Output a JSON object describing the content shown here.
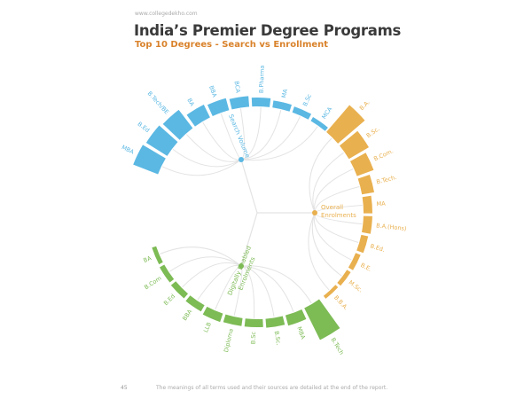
{
  "header": {
    "site": "www.collegedekho.com",
    "title": "India’s Premier Degree Programs",
    "subtitle": "Top 10 Degrees - Search vs Enrollment"
  },
  "footer": {
    "page_number": "45",
    "note": "The meanings of all terms used and their sources are detailed at the end of the report."
  },
  "chart_data": {
    "type": "radial bar dendrogram",
    "note_values": "relative bar lengths estimated visually; no axis printed",
    "groups": [
      {
        "name": "Search Volume",
        "color": "#5bb8e3",
        "categories": [
          "MBA",
          "B.Ed",
          "B.Tech/BE",
          "BA",
          "BBA",
          "BCA",
          "B.Pharma",
          "MA",
          "B.Sc",
          "MCA"
        ],
        "values": [
          30,
          28,
          26,
          16,
          14,
          12,
          10,
          8,
          7,
          5
        ]
      },
      {
        "name": "Overall Enrolments",
        "color": "#e9b04f",
        "categories": [
          "B.A.",
          "B.Sc.",
          "B.Com.",
          "B.Tech.",
          "MA",
          "B.A.(Hons)",
          "B.Ed.",
          "B.E.",
          "M.Sc.",
          "B.B.A."
        ],
        "values": [
          40,
          26,
          20,
          14,
          10,
          10,
          8,
          6,
          5,
          4
        ]
      },
      {
        "name": "Digitally Enabled Enrolments",
        "color": "#7dbb55",
        "categories": [
          "B.Tech",
          "MBA",
          "B.Sc.",
          "B.Sc",
          "Diploma",
          "LLB",
          "BBA",
          "B.Ed",
          "B.Com",
          "BA"
        ],
        "values": [
          40,
          12,
          10,
          9,
          9,
          10,
          8,
          7,
          6,
          5
        ]
      }
    ]
  }
}
